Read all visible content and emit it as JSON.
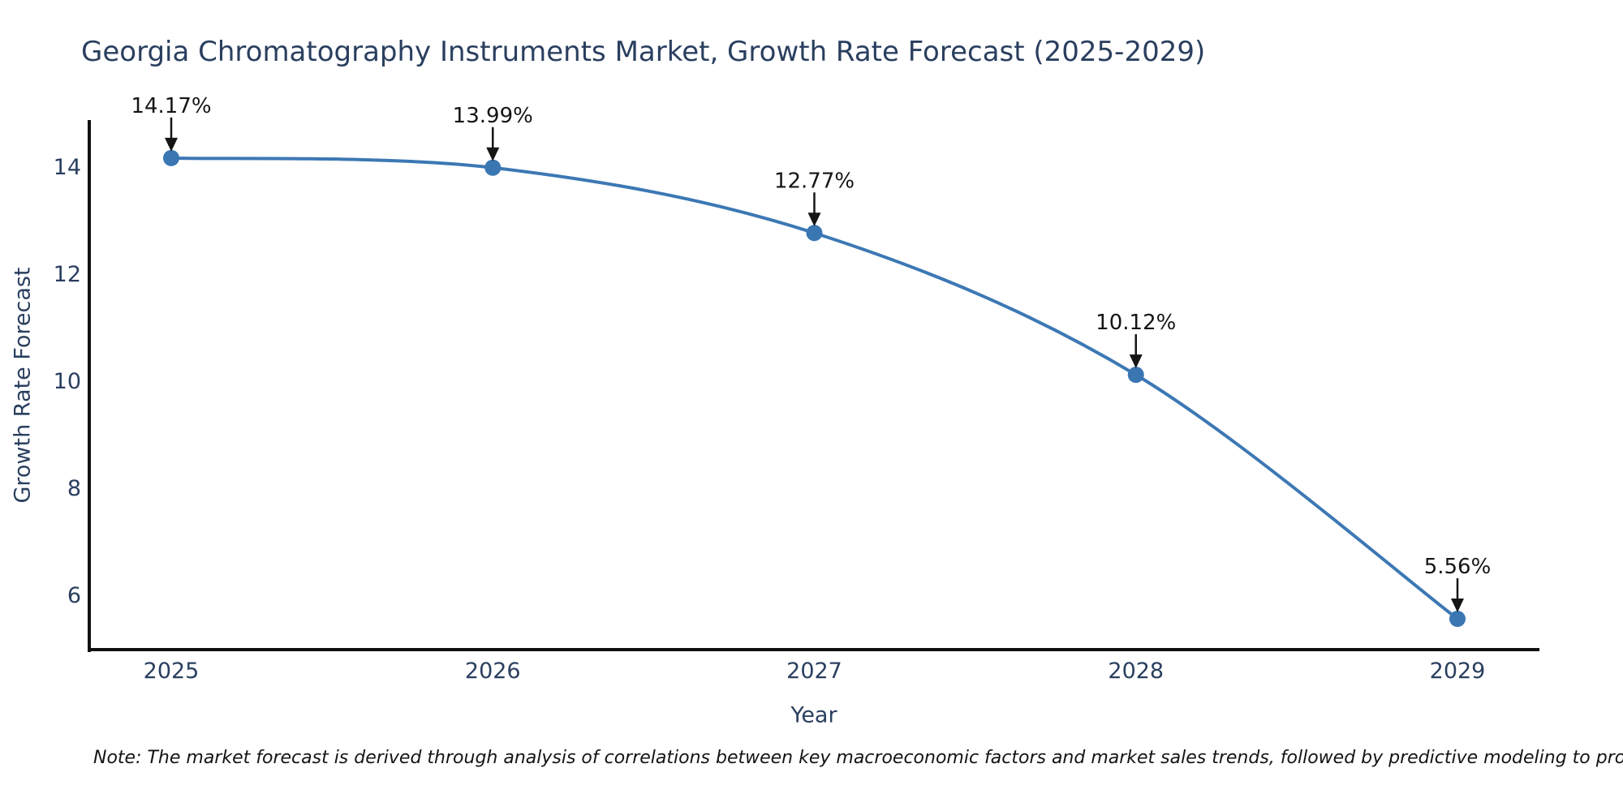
{
  "page": {
    "background_color": "#ffffff"
  },
  "chart": {
    "note": "Note: The market forecast is derived through analysis of correlations between key macroeconomic factors and market sales trends, followed by predictive modeling to project future sales"
  },
  "chart_data": {
    "type": "line",
    "title": "Georgia Chromatography Instruments Market, Growth Rate Forecast (2025-2029)",
    "x": [
      "2025",
      "2026",
      "2027",
      "2028",
      "2029"
    ],
    "values": [
      14.17,
      13.99,
      12.77,
      10.12,
      5.56
    ],
    "point_labels": [
      "14.17%",
      "13.99%",
      "12.77%",
      "10.12%",
      "5.56%"
    ],
    "xlabel": "Year",
    "ylabel": "Growth Rate Forecast",
    "yticks": [
      6,
      8,
      10,
      12,
      14
    ],
    "ylim": [
      5.0,
      14.85
    ],
    "grid": false,
    "legend": "none",
    "line_shape": "spline",
    "line_color": "#3c78b4",
    "marker_color": "#3a76b2",
    "axis_color": "#111111",
    "tick_color": "#2a3f5f",
    "annotation_color": "#151515"
  }
}
